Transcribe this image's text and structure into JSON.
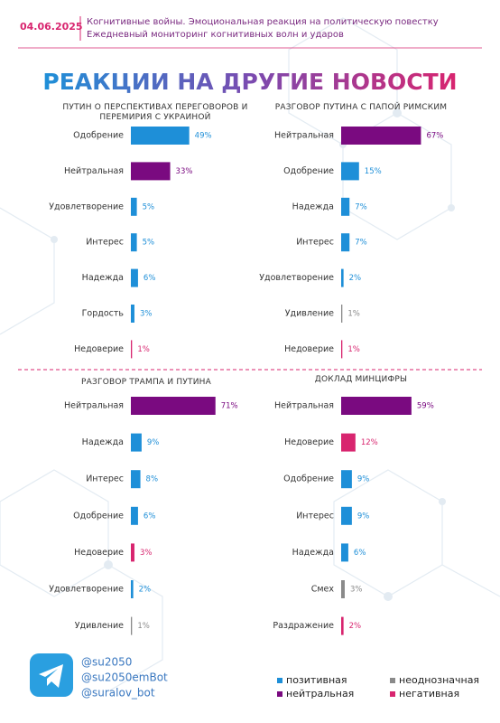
{
  "header": {
    "date": "04.06.2025",
    "lines": [
      "Когнитивные войны. Эмоциональная реакция на политическую повестку",
      "Ежедневный мониторинг когнитивных волн и ударов"
    ]
  },
  "title": "РЕАКЦИИ НА ДРУГИЕ НОВОСТИ",
  "chart_data": [
    {
      "type": "bar",
      "title": "ПУТИН О ПЕРСПЕКТИВАХ ПЕРЕГОВОРОВ И ПЕРЕМИРИЯ С УКРАИНОЙ",
      "categories": [
        "Одобрение",
        "Нейтральная",
        "Удовлетворение",
        "Интерес",
        "Надежда",
        "Гордость",
        "Недоверие"
      ],
      "values": [
        49,
        33,
        5,
        5,
        6,
        3,
        1
      ],
      "value_labels": [
        "49%",
        "33%",
        "5%",
        "5%",
        "6%",
        "3%",
        "1%"
      ],
      "colors": [
        "#1e8fd8",
        "#7a0a80",
        "#1e8fd8",
        "#1e8fd8",
        "#1e8fd8",
        "#1e8fd8",
        "#d8256f"
      ]
    },
    {
      "type": "bar",
      "title": "РАЗГОВОР ПУТИНА С ПАПОЙ РИМСКИМ",
      "categories": [
        "Нейтральная",
        "Одобрение",
        "Надежда",
        "Интерес",
        "Удовлетворение",
        "Удивление",
        "Недоверие"
      ],
      "values": [
        67,
        15,
        7,
        7,
        2,
        1,
        1
      ],
      "value_labels": [
        "67%",
        "15%",
        "7%",
        "7%",
        "2%",
        "1%",
        "1%"
      ],
      "colors": [
        "#7a0a80",
        "#1e8fd8",
        "#1e8fd8",
        "#1e8fd8",
        "#1e8fd8",
        "#8a8a8a",
        "#d8256f"
      ]
    },
    {
      "type": "bar",
      "title": "РАЗГОВОР ТРАМПА И ПУТИНА",
      "categories": [
        "Нейтральная",
        "Надежда",
        "Интерес",
        "Одобрение",
        "Недоверие",
        "Удовлетворение",
        "Удивление"
      ],
      "values": [
        71,
        9,
        8,
        6,
        3,
        2,
        1
      ],
      "value_labels": [
        "71%",
        "9%",
        "8%",
        "6%",
        "3%",
        "2%",
        "1%"
      ],
      "colors": [
        "#7a0a80",
        "#1e8fd8",
        "#1e8fd8",
        "#1e8fd8",
        "#d8256f",
        "#1e8fd8",
        "#8a8a8a"
      ]
    },
    {
      "type": "bar",
      "title": "ДОКЛАД МИНЦИФРЫ",
      "categories": [
        "Нейтральная",
        "Недоверие",
        "Одобрение",
        "Интерес",
        "Надежда",
        "Смех",
        "Раздражение"
      ],
      "values": [
        59,
        12,
        9,
        9,
        6,
        3,
        2
      ],
      "value_labels": [
        "59%",
        "12%",
        "9%",
        "9%",
        "6%",
        "3%",
        "2%"
      ],
      "colors": [
        "#7a0a80",
        "#d8256f",
        "#1e8fd8",
        "#1e8fd8",
        "#1e8fd8",
        "#8a8a8a",
        "#d8256f"
      ]
    }
  ],
  "legend": [
    {
      "name": "позитивная",
      "color": "#1e8fd8"
    },
    {
      "name": "нейтральная",
      "color": "#7a0a80"
    },
    {
      "name": "неоднозначная",
      "color": "#8a8a8a"
    },
    {
      "name": "негативная",
      "color": "#d8256f"
    }
  ],
  "contacts": [
    "@su2050",
    "@su2050emBot",
    "@suralov_bot"
  ]
}
